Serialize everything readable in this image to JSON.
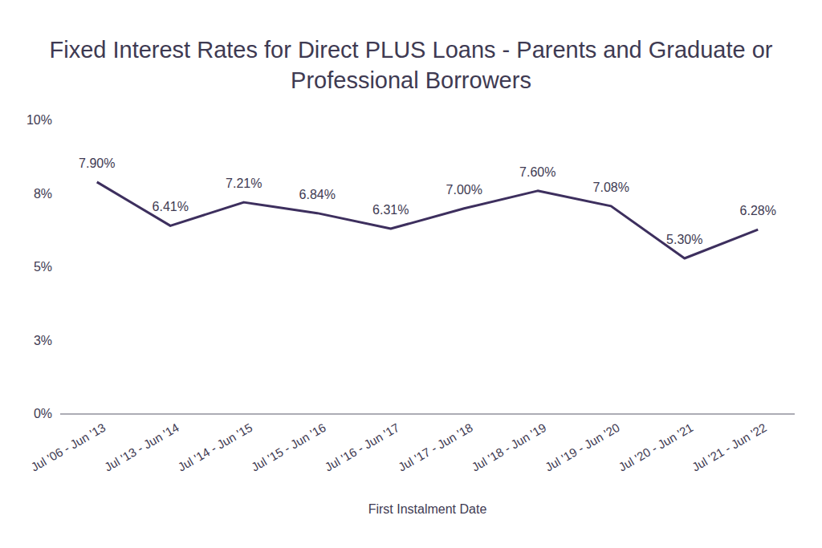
{
  "chart_data": {
    "type": "line",
    "title": "Fixed Interest Rates for Direct PLUS Loans - Parents and Graduate or Professional Borrowers",
    "x_label": "First Instalment Date",
    "categories": [
      "Jul '06 - Jun '13",
      "Jul '13 - Jun '14",
      "Jul '14 - Jun '15",
      "Jul '15 - Jun '16",
      "Jul '16 - Jun '17",
      "Jul '17 - Jun '18",
      "Jul '18 - Jun '19",
      "Jul '19 - Jun '20",
      "Jul '20 - Jun '21",
      "Jul '21 - Jun '22"
    ],
    "values": [
      7.9,
      6.41,
      7.21,
      6.84,
      6.31,
      7.0,
      7.6,
      7.08,
      5.3,
      6.28
    ],
    "value_labels": [
      "7.90%",
      "6.41%",
      "7.21%",
      "6.84%",
      "6.31%",
      "7.00%",
      "7.60%",
      "7.08%",
      "5.30%",
      "6.28%"
    ],
    "data_labels": true,
    "color": "#3d2f5e",
    "ylim": [
      0,
      10
    ],
    "yticks": [
      {
        "value": 0,
        "label": "0%"
      },
      {
        "value": 2.5,
        "label": "3%"
      },
      {
        "value": 5,
        "label": "5%"
      },
      {
        "value": 7.5,
        "label": "8%"
      },
      {
        "value": 10,
        "label": "10%"
      }
    ],
    "grid": false
  }
}
